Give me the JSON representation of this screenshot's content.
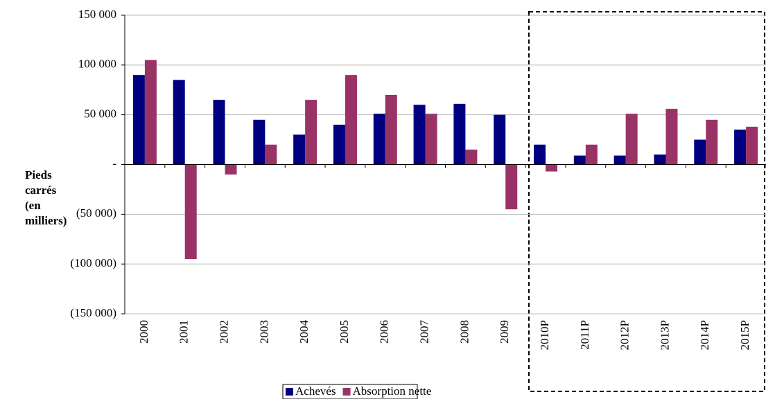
{
  "chart_data": {
    "type": "bar",
    "y_label": [
      "Pieds",
      "carrés",
      "(en",
      "milliers)"
    ],
    "categories": [
      "2000",
      "2001",
      "2002",
      "2003",
      "2004",
      "2005",
      "2006",
      "2007",
      "2008",
      "2009",
      "2010P",
      "2011P",
      "2012P",
      "2013P",
      "2014P",
      "2015P"
    ],
    "series": [
      {
        "name": "Achevés",
        "color": "#000080",
        "values": [
          90000,
          85000,
          65000,
          45000,
          30000,
          40000,
          51000,
          60000,
          61000,
          50000,
          20000,
          9000,
          9000,
          10000,
          25000,
          35000
        ]
      },
      {
        "name": "Absorption nette",
        "color": "#993366",
        "values": [
          105000,
          -95000,
          -10000,
          20000,
          65000,
          90000,
          70000,
          51000,
          15000,
          -45000,
          -7000,
          20000,
          51000,
          56000,
          45000,
          38000
        ]
      }
    ],
    "ylim": [
      -150000,
      150000
    ],
    "yticks": [
      {
        "value": 150000,
        "label": "150 000"
      },
      {
        "value": 100000,
        "label": "100 000"
      },
      {
        "value": 50000,
        "label": "50 000"
      },
      {
        "value": 0,
        "label": "-"
      },
      {
        "value": -50000,
        "label": "(50 000)"
      },
      {
        "value": -100000,
        "label": "(100 000)"
      },
      {
        "value": -150000,
        "label": "(150 000)"
      }
    ],
    "grid": true
  }
}
